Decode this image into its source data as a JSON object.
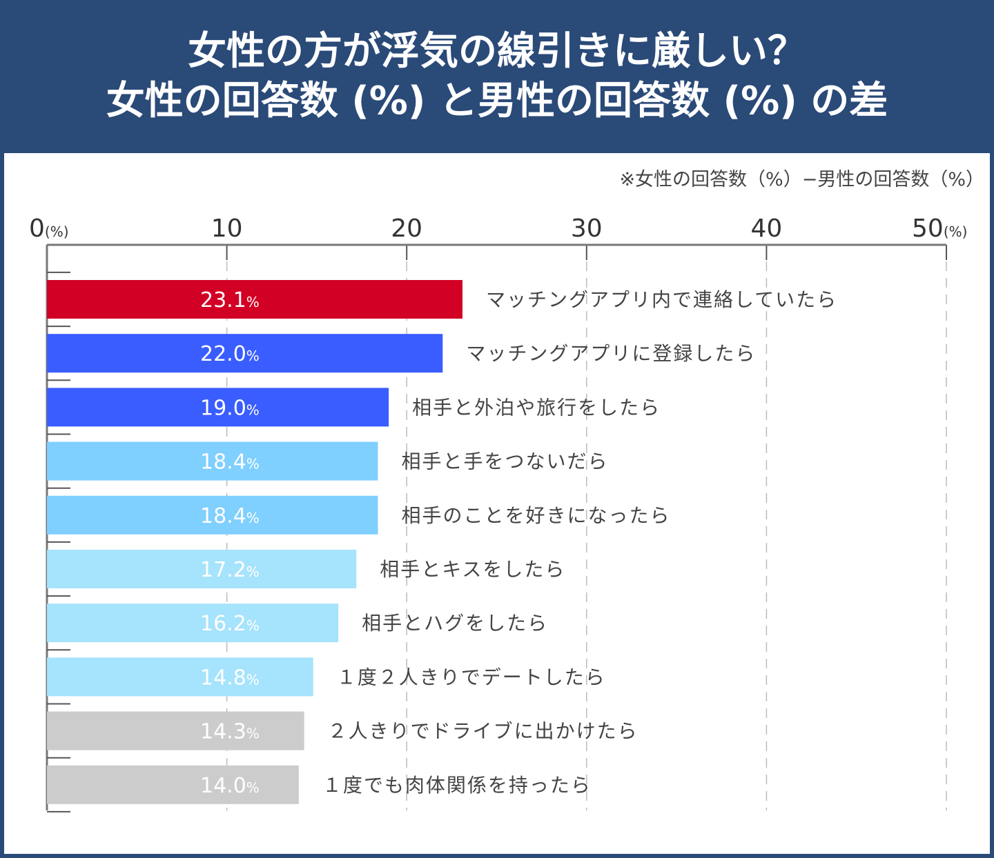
{
  "title_line1": "女性の方が浮気の線引きに厳しい？",
  "title_line2": "女性の回答数 (%) と男性の回答数 (%) の差",
  "note": "※女性の回答数（%）−男性の回答数（%）",
  "colors": {
    "header_bg": "#2a4a78",
    "red": "#d20024",
    "blue": "#3a5dff",
    "light_blue": "#7fcfff",
    "pale_blue": "#a6e3fc",
    "gray": "#cccccc"
  },
  "chart_data": {
    "type": "bar",
    "orientation": "horizontal",
    "xlim": [
      0,
      50
    ],
    "ticks": [
      "0",
      "10",
      "20",
      "30",
      "40",
      "50"
    ],
    "tick_unit": "(%)",
    "grid": "vertical dashed",
    "value_suffix": "%",
    "categories": [
      "マッチングアプリ内で連絡していたら",
      "マッチングアプリに登録したら",
      "相手と外泊や旅行をしたら",
      "相手と手をつないだら",
      "相手のことを好きになったら",
      "相手とキスをしたら",
      "相手とハグをしたら",
      "１度２人きりでデートしたら",
      "２人きりでドライブに出かけたら",
      "１度でも肉体関係を持ったら"
    ],
    "values": [
      23.1,
      22.0,
      19.0,
      18.4,
      18.4,
      17.2,
      16.2,
      14.8,
      14.3,
      14.0
    ],
    "value_labels": [
      "23.1",
      "22.0",
      "19.0",
      "18.4",
      "18.4",
      "17.2",
      "16.2",
      "14.8",
      "14.3",
      "14.0"
    ],
    "bar_colors": [
      "#d20024",
      "#3a5dff",
      "#3a5dff",
      "#7fcfff",
      "#7fcfff",
      "#a6e3fc",
      "#a6e3fc",
      "#a6e3fc",
      "#cccccc",
      "#cccccc"
    ]
  }
}
